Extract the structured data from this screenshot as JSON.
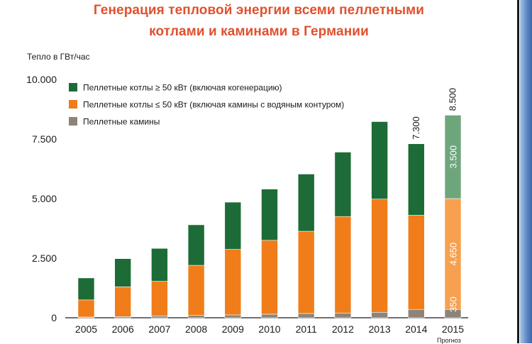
{
  "chart_data": {
    "type": "bar",
    "stacked": true,
    "title": [
      "Генерация тепловой энергии всеми пеллетными",
      "котлами и каминами в Германии"
    ],
    "ylabel": "Тепло в ГВт/час",
    "ylim": [
      0,
      10000
    ],
    "yticks": [
      "0",
      "2.500",
      "5.000",
      "7.500",
      "10.000"
    ],
    "ytick_values": [
      0,
      2500,
      5000,
      7500,
      10000
    ],
    "categories": [
      "2005",
      "2006",
      "2007",
      "2008",
      "2009",
      "2010",
      "2011",
      "2012",
      "2013",
      "2014",
      "2015"
    ],
    "series": [
      {
        "name": "Пеллетные камины",
        "color": "#8c8478",
        "values": [
          30,
          50,
          80,
          100,
          120,
          150,
          180,
          200,
          230,
          350,
          350
        ]
      },
      {
        "name": "Пеллетные котлы ≤ 50 кВт (включая камины с водяным контуром)",
        "color": "#f07d1a",
        "values": [
          720,
          1250,
          1450,
          2100,
          2750,
          3100,
          3450,
          4050,
          4750,
          3950,
          4650
        ]
      },
      {
        "name": "Пеллетные котлы ≥ 50 кВт (включая когенерацию)",
        "color": "#1d6b36",
        "values": [
          920,
          1180,
          1380,
          1700,
          1980,
          2150,
          2400,
          2700,
          3250,
          3000,
          3500
        ]
      }
    ],
    "projected_category": "2015",
    "projected_colors": [
      "#8c8478",
      "#f6a050",
      "#6ea67c"
    ],
    "bar_labels": [
      {
        "category": "2014",
        "text": "7.300"
      },
      {
        "category": "2015",
        "text": "8.500"
      }
    ],
    "segment_labels": [
      {
        "category": "2015",
        "series": 0,
        "text": "350"
      },
      {
        "category": "2015",
        "series": 1,
        "text": "4.650"
      },
      {
        "category": "2015",
        "series": 2,
        "text": "3.500"
      }
    ],
    "legend": {
      "placement": "top-left",
      "order": [
        2,
        1,
        0
      ]
    },
    "footnote": "Прогноз"
  },
  "colors": {
    "title": "#e0502e",
    "frame": "#4a74b4"
  }
}
